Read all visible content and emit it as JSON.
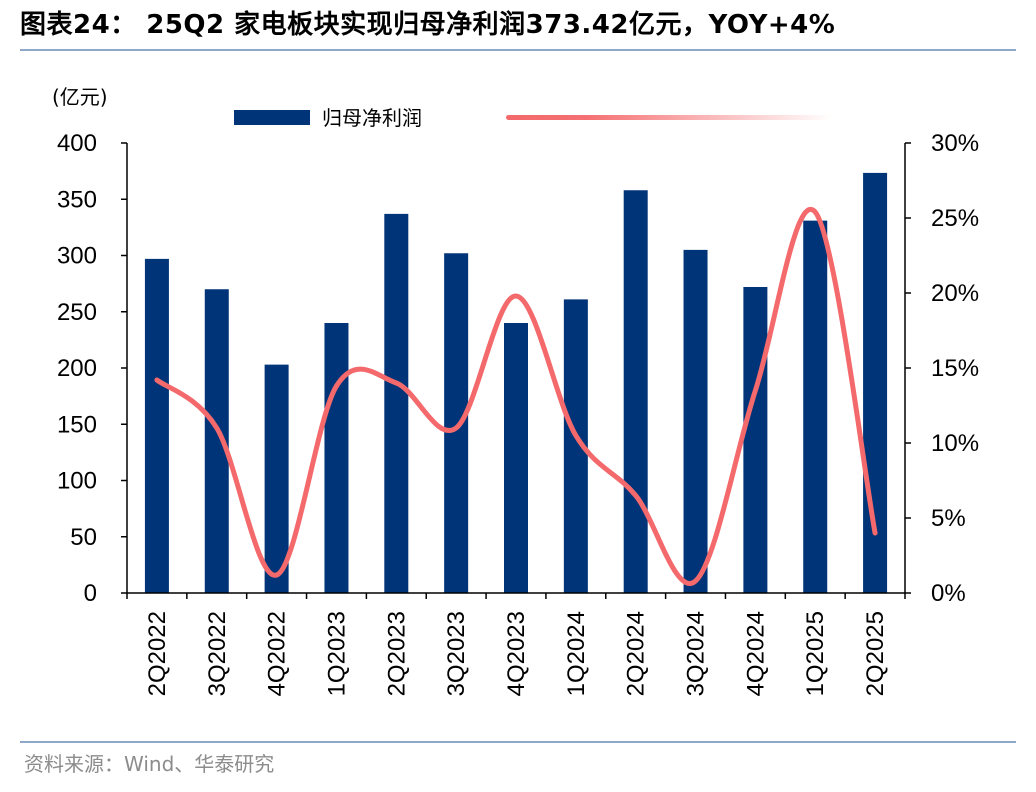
{
  "header": {
    "title": "图表24： 25Q2 家电板块实现归母净利润373.42亿元，YOY+4%"
  },
  "footer": {
    "source": "资料来源：Wind、华泰研究"
  },
  "colors": {
    "bar": "#003478",
    "line": "#f4696b",
    "axis": "#000000",
    "rule": "#8fa8c8"
  },
  "chart_data": {
    "type": "bar",
    "categories": [
      "2Q2022",
      "3Q2022",
      "4Q2022",
      "1Q2023",
      "2Q2023",
      "3Q2023",
      "4Q2023",
      "1Q2024",
      "2Q2024",
      "3Q2024",
      "4Q2024",
      "1Q2025",
      "2Q2025"
    ],
    "series": [
      {
        "name": "归母净利润",
        "type": "bar",
        "axis": "left",
        "values": [
          297,
          270,
          203,
          240,
          337,
          302,
          240,
          261,
          358,
          305,
          272,
          331,
          373.42
        ]
      },
      {
        "name": "",
        "type": "line",
        "smooth": true,
        "axis": "right",
        "values": [
          14.2,
          11.0,
          1.2,
          13.8,
          14.0,
          11.0,
          19.8,
          10.5,
          6.5,
          0.8,
          13.5,
          25.4,
          4.0
        ]
      }
    ],
    "ylabel": "(亿元)",
    "ylim": [
      0,
      400
    ],
    "yticks": [
      "0",
      "50",
      "100",
      "150",
      "200",
      "250",
      "300",
      "350",
      "400"
    ],
    "y2lim": [
      0,
      30
    ],
    "y2ticks": [
      "0%",
      "5%",
      "10%",
      "15%",
      "20%",
      "25%",
      "30%"
    ],
    "legend_position": "top",
    "grid": false
  }
}
